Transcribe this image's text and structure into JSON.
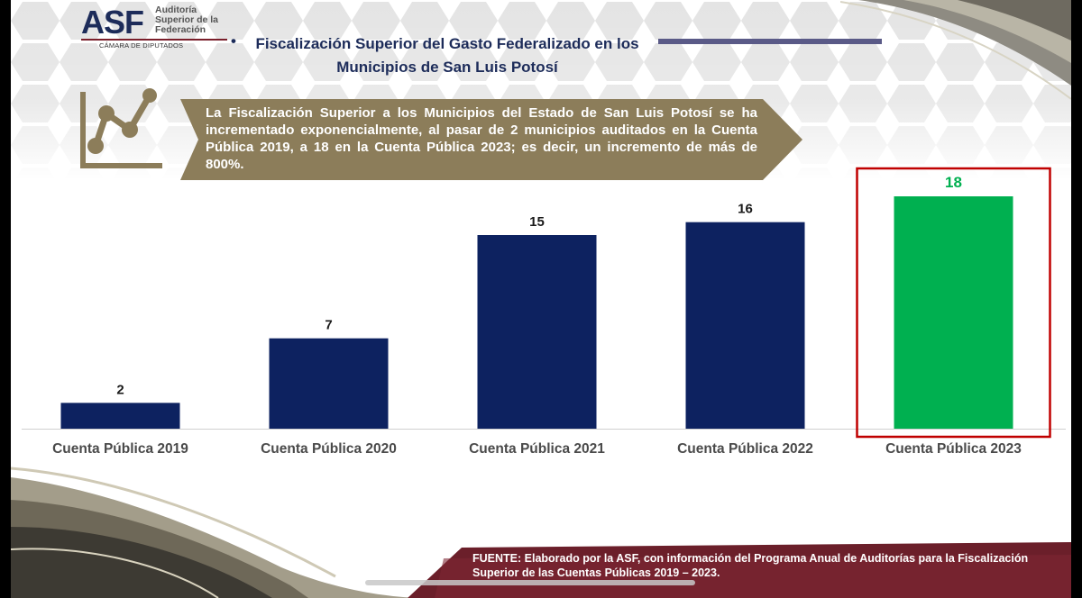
{
  "header": {
    "logo_text": "ASF",
    "logo_subtitle": "Auditoría Superior de la Federación",
    "logo_camara": "CÁMARA DE DIPUTADOS",
    "title_bullet": "•",
    "title": "Fiscalización Superior del Gasto Federalizado en los Municipios de San Luis Potosí"
  },
  "banner": {
    "text": "La Fiscalización Superior a los Municipios del Estado de San Luis Potosí se ha incrementado exponencialmente, al pasar de 2 municipios auditados en la Cuenta Pública 2019, a 18 en la Cuenta Pública 2023; es decir, un incremento de más de 800%."
  },
  "source": {
    "text": "FUENTE: Elaborado por la ASF, con información del Programa Anual de Auditorías para la Fiscalización Superior de las Cuentas Públicas 2019 –  2023."
  },
  "colors": {
    "bar": "#0d2260",
    "highlight_bar": "#00b050",
    "highlight_border": "#c00000",
    "banner": "#8c7d5a",
    "title": "#1d2c5a"
  },
  "chart_data": {
    "type": "bar",
    "categories": [
      "Cuenta Pública 2019",
      "Cuenta Pública 2020",
      "Cuenta Pública 2021",
      "Cuenta Pública 2022",
      "Cuenta Pública 2023"
    ],
    "values": [
      2,
      7,
      15,
      16,
      18
    ],
    "highlight_index": 4,
    "title": "",
    "xlabel": "",
    "ylabel": "",
    "ylim": [
      0,
      18
    ],
    "grid": false,
    "data_labels": true
  }
}
